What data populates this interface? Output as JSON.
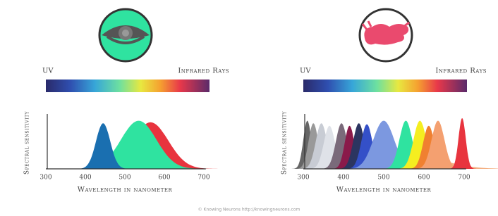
{
  "panels": [
    {
      "uv_label": "UV",
      "ir_label": "Infrared Rays",
      "y_label": "Spectral sensitivity",
      "x_ticks": [
        "300",
        "400",
        "500",
        "600",
        "700"
      ],
      "x_label": "Wavelength in nanometer"
    },
    {
      "uv_label": "UV",
      "ir_label": "Infrared Rays",
      "y_label": "Spectral sensitivity",
      "x_ticks": [
        "300",
        "400",
        "500",
        "600",
        "700"
      ],
      "x_label": "Wavelength in nanometer"
    }
  ],
  "footer": "© Knowing Neurons http://knowingneurons.com"
}
